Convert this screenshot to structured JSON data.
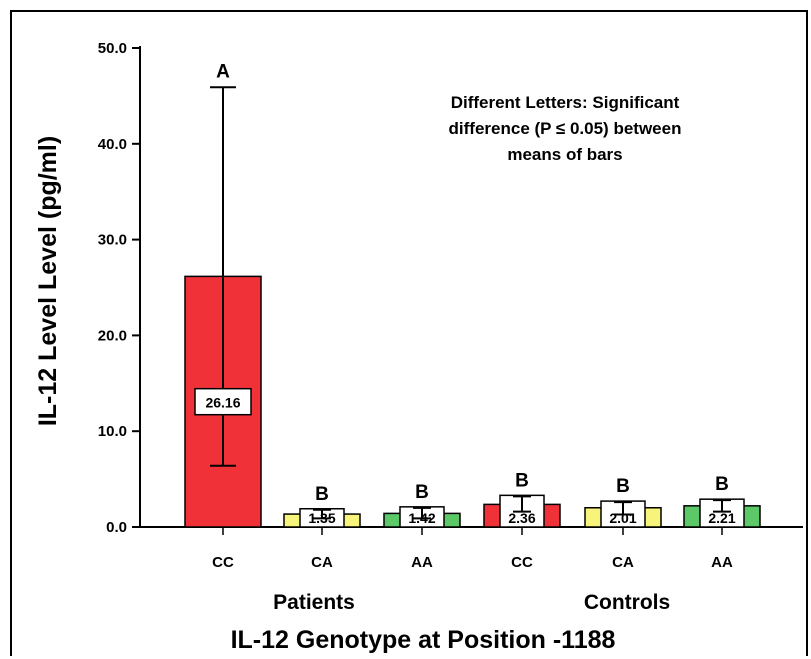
{
  "chart_data": {
    "type": "bar",
    "ylabel": "IL-12 Level Level (pg/ml)",
    "xlabel": "IL-12 Genotype at Position -1188",
    "ylim": [
      0,
      50
    ],
    "yticks": [
      "0.0",
      "10.0",
      "20.0",
      "30.0",
      "40.0",
      "50.0"
    ],
    "groups": [
      "Patients",
      "Controls"
    ],
    "categories": [
      "CC",
      "CA",
      "AA",
      "CC",
      "CA",
      "AA"
    ],
    "values": [
      26.16,
      1.35,
      1.42,
      2.36,
      2.01,
      2.21
    ],
    "value_labels": [
      "26.16",
      "1.35",
      "1.42",
      "2.36",
      "2.01",
      "2.21"
    ],
    "error_low": [
      6.4,
      0.9,
      0.9,
      1.6,
      1.3,
      1.6
    ],
    "error_high": [
      45.9,
      1.8,
      2.0,
      3.2,
      2.6,
      2.8
    ],
    "letters": [
      "A",
      "B",
      "B",
      "B",
      "B",
      "B"
    ],
    "colors": [
      "#f03238",
      "#f6f47a",
      "#5cc867",
      "#f03238",
      "#f6f47a",
      "#5cc867"
    ],
    "annotation": [
      "Different Letters: Significant",
      "difference (P ≤ 0.05) between",
      "means of bars"
    ],
    "grid": false
  }
}
